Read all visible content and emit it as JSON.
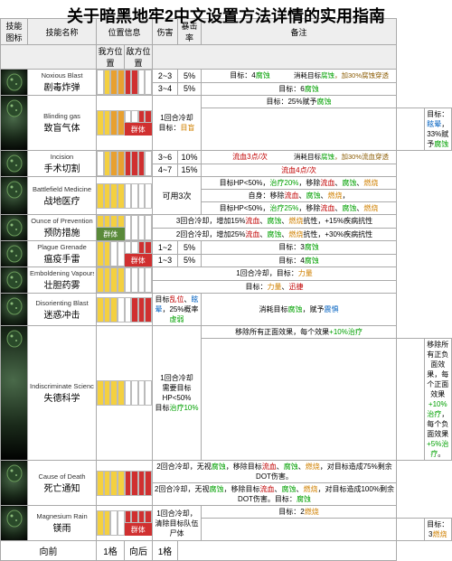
{
  "page_title": "关于暗黑地牢2中文设置方法详情的实用指南",
  "colors": {
    "pos_yellow": "#f4d040",
    "pos_orange": "#e8a030",
    "pos_red": "#d03030",
    "pos_green": "#5a8a3a",
    "pos_empty": "#ffffff",
    "border": "#aaaaaa",
    "text_red": "#c00000",
    "text_green": "#00a000",
    "text_orange": "#d08000",
    "text_blue": "#0060c0",
    "text_yellow": "#c0a000",
    "text_brown": "#8a5a00"
  },
  "headers": {
    "icon": "技能图标",
    "name": "技能名称",
    "pos": "位置信息",
    "pos_self": "我方位置",
    "pos_enemy": "敌方位置",
    "dmg": "伤害",
    "crit": "暴击率",
    "note": "备注"
  },
  "nav": {
    "prev": "向前",
    "prev_n": "1格",
    "next": "向后",
    "next_n": "1格"
  },
  "group_label": "群体",
  "skills": [
    {
      "en": "Noxious Blast",
      "cn": "剧毒炸弹",
      "pos_self": [
        "empty",
        "yellow",
        "orange",
        "orange"
      ],
      "pos_enemy": [
        "red",
        "red",
        "empty",
        "empty"
      ],
      "rows": [
        {
          "dmg": "2~3",
          "crit": "5%",
          "note_segs": [
            [
              "目标：4",
              ""
            ],
            [
              "腐蚀",
              "green"
            ]
          ],
          "right_segs": [
            [
              "消耗目标",
              ""
            ],
            [
              "腐蚀",
              "green"
            ],
            [
              "，加30%腐蚀穿透",
              "brown"
            ]
          ]
        },
        {
          "dmg": "3~4",
          "crit": "5%",
          "note_segs": [
            [
              "目标：6",
              ""
            ],
            [
              "腐蚀",
              "green"
            ]
          ]
        }
      ]
    },
    {
      "en": "Blinding gas",
      "cn": "致盲气体",
      "pos_self": [
        "yellow",
        "yellow",
        "orange",
        "orange"
      ],
      "pos_enemy": [
        "empty",
        "empty",
        "red",
        "red"
      ],
      "enemy_group": true,
      "rows": [
        {
          "dmg_span": "1回合冷却\n目标：",
          "dmg_extra": [
            [
              "目盲",
              "orange"
            ]
          ],
          "note_segs": [
            [
              "目标：25%赋予",
              ""
            ],
            [
              "腐蚀",
              "green"
            ]
          ]
        },
        {
          "note_segs": [
            [
              "目标：",
              ""
            ],
            [
              "眩晕",
              "blue"
            ],
            [
              "，33%赋予",
              ""
            ],
            [
              "腐蚀",
              "green"
            ]
          ]
        }
      ]
    },
    {
      "en": "Incision",
      "cn": "手术切割",
      "pos_self": [
        "empty",
        "yellow",
        "orange",
        "orange"
      ],
      "pos_enemy": [
        "red",
        "red",
        "red",
        "empty"
      ],
      "rows": [
        {
          "dmg": "3~6",
          "crit": "10%",
          "note_segs": [
            [
              "流血3点/次",
              "red"
            ]
          ],
          "right_segs": [
            [
              "消耗目标",
              ""
            ],
            [
              "腐蚀",
              "green"
            ],
            [
              "，加30%流血穿透",
              "brown"
            ]
          ]
        },
        {
          "dmg": "4~7",
          "crit": "15%",
          "note_segs": [
            [
              "流血4点/次",
              "red"
            ]
          ]
        }
      ]
    },
    {
      "en": "Battlefield Medicine",
      "cn": "战地医疗",
      "pos_self": [
        "yellow",
        "yellow",
        "yellow",
        "yellow"
      ],
      "pos_enemy": [
        "empty",
        "empty",
        "empty",
        "empty"
      ],
      "mid_text": "可用3次",
      "rows": [
        {
          "note_segs": [
            [
              "目标HP<50%，",
              ""
            ],
            [
              "治疗20%",
              "green"
            ],
            [
              "，移除",
              ""
            ],
            [
              "流血",
              "red"
            ],
            [
              "、",
              ""
            ],
            [
              "腐蚀",
              "green"
            ],
            [
              "、",
              ""
            ],
            [
              "燃烧",
              "orange"
            ]
          ]
        },
        {
          "note_segs": [
            [
              "自身：移除",
              ""
            ],
            [
              "流血",
              "red"
            ],
            [
              "、",
              ""
            ],
            [
              "腐蚀",
              "green"
            ],
            [
              "、",
              ""
            ],
            [
              "燃烧",
              "orange"
            ],
            [
              "，",
              ""
            ]
          ]
        },
        {
          "note_segs": [
            [
              "目标HP<50%，",
              ""
            ],
            [
              "治疗25%",
              "green"
            ],
            [
              "，移除",
              ""
            ],
            [
              "流血",
              "red"
            ],
            [
              "、",
              ""
            ],
            [
              "腐蚀",
              "green"
            ],
            [
              "、",
              ""
            ],
            [
              "燃烧",
              "orange"
            ]
          ]
        }
      ]
    },
    {
      "en": "Ounce of Prevention",
      "cn": "预防措施",
      "pos_self": [
        "yellow",
        "yellow",
        "yellow",
        "yellow"
      ],
      "self_group": true,
      "pos_enemy": [
        "empty",
        "empty",
        "empty",
        "empty"
      ],
      "rows": [
        {
          "full_segs": [
            [
              "3回合冷却，增加15%",
              ""
            ],
            [
              "流血",
              "red"
            ],
            [
              "、",
              ""
            ],
            [
              "腐蚀",
              "green"
            ],
            [
              "、",
              ""
            ],
            [
              "燃烧",
              "orange"
            ],
            [
              "抗性，+15%疾病抗性",
              ""
            ]
          ]
        },
        {
          "full_segs": [
            [
              "2回合冷却，增加25%",
              ""
            ],
            [
              "流血",
              "red"
            ],
            [
              "、",
              ""
            ],
            [
              "腐蚀",
              "green"
            ],
            [
              "、",
              ""
            ],
            [
              "燃烧",
              "orange"
            ],
            [
              "抗性，+30%疾病抗性",
              ""
            ]
          ]
        }
      ]
    },
    {
      "en": "Plague Grenade",
      "cn": "瘟疫手雷",
      "pos_self": [
        "yellow",
        "yellow",
        "empty",
        "empty"
      ],
      "pos_enemy": [
        "empty",
        "empty",
        "red",
        "red"
      ],
      "enemy_group": true,
      "rows": [
        {
          "dmg": "1~2",
          "crit": "5%",
          "note_segs": [
            [
              "目标：3",
              ""
            ],
            [
              "腐蚀",
              "green"
            ]
          ]
        },
        {
          "dmg": "1~3",
          "crit": "5%",
          "note_segs": [
            [
              "目标：4",
              ""
            ],
            [
              "腐蚀",
              "green"
            ]
          ]
        }
      ]
    },
    {
      "en": "Emboldening Vapours",
      "cn": "壮胆药雾",
      "pos_self": [
        "yellow",
        "yellow",
        "yellow",
        "yellow"
      ],
      "pos_enemy": [
        "empty",
        "empty",
        "empty",
        "empty"
      ],
      "rows": [
        {
          "full_segs": [
            [
              "1回合冷却，目标：",
              ""
            ],
            [
              "力量",
              "orange"
            ]
          ]
        },
        {
          "full_segs": [
            [
              "目标：",
              ""
            ],
            [
              "力量",
              "orange"
            ],
            [
              "、",
              ""
            ],
            [
              "迅捷",
              "red"
            ]
          ]
        }
      ]
    },
    {
      "en": "Disorienting Blast",
      "cn": "迷惑冲击",
      "pos_self": [
        "yellow",
        "yellow",
        "yellow",
        "empty"
      ],
      "pos_enemy": [
        "empty",
        "red",
        "red",
        "red"
      ],
      "rows": [
        {
          "mid_segs": [
            [
              "目标",
              ""
            ],
            [
              "乱位",
              "red"
            ],
            [
              "、",
              ""
            ],
            [
              "眩晕",
              "blue"
            ],
            [
              "，25%概率",
              ""
            ],
            [
              "虚弱",
              "green"
            ]
          ],
          "note_segs": [
            [
              "消耗目标",
              ""
            ],
            [
              "腐蚀",
              "green"
            ],
            [
              "，赋予",
              ""
            ],
            [
              "震惧",
              "blue"
            ]
          ]
        }
      ]
    },
    {
      "en": "Indiscriminate Science",
      "cn": "失德科学",
      "pos_self": [
        "yellow",
        "yellow",
        "yellow",
        "yellow"
      ],
      "pos_enemy": [
        "empty",
        "empty",
        "empty",
        "empty"
      ],
      "rows": [
        {
          "mid_segs": [
            [
              "1回合冷却\n需要目标HP<50%\n目标",
              ""
            ],
            [
              "治疗10%",
              "green"
            ]
          ],
          "note_segs": [
            [
              "移除所有正面效果，每个效果",
              ""
            ],
            [
              "+10%治疗",
              "green"
            ]
          ]
        },
        {
          "note_segs": [
            [
              "移除所有正负面效果，每个正面效果",
              ""
            ],
            [
              "+10%治疗",
              "green"
            ],
            [
              "，每个负面效果",
              ""
            ],
            [
              "+5%治疗",
              "green"
            ],
            [
              "。",
              ""
            ]
          ]
        }
      ]
    },
    {
      "en": "Cause of Death",
      "cn": "死亡通知",
      "pos_self": [
        "yellow",
        "yellow",
        "yellow",
        "yellow"
      ],
      "pos_enemy": [
        "red",
        "red",
        "red",
        "red"
      ],
      "rows": [
        {
          "full_segs": [
            [
              "2回合冷却，无视",
              ""
            ],
            [
              "腐蚀",
              "green"
            ],
            [
              "，移除目标",
              ""
            ],
            [
              "流血",
              "red"
            ],
            [
              "、",
              ""
            ],
            [
              "腐蚀",
              "green"
            ],
            [
              "、",
              ""
            ],
            [
              "燃烧",
              "orange"
            ],
            [
              "，对目标造成75%剩余DOT伤害。",
              ""
            ]
          ]
        },
        {
          "full_segs": [
            [
              "2回合冷却，无视",
              ""
            ],
            [
              "腐蚀",
              "green"
            ],
            [
              "，移除目标",
              ""
            ],
            [
              "流血",
              "red"
            ],
            [
              "、",
              ""
            ],
            [
              "腐蚀",
              "green"
            ],
            [
              "、",
              ""
            ],
            [
              "燃烧",
              "orange"
            ],
            [
              "，对目标造成100%剩余DOT伤害。目标：",
              ""
            ],
            [
              "腐蚀",
              "green"
            ]
          ]
        }
      ]
    },
    {
      "en": "Magnesium Rain",
      "cn": "镁雨",
      "pos_self": [
        "yellow",
        "yellow",
        "empty",
        "empty"
      ],
      "pos_enemy": [
        "red",
        "red",
        "red",
        "red"
      ],
      "enemy_group": true,
      "rows": [
        {
          "mid_segs": [
            [
              "1回合冷却，清除目标队伍尸体",
              ""
            ]
          ],
          "note_segs": [
            [
              "目标：2",
              ""
            ],
            [
              "燃烧",
              "orange"
            ]
          ]
        },
        {
          "note_segs": [
            [
              "目标：3",
              ""
            ],
            [
              "燃烧",
              "orange"
            ]
          ]
        }
      ]
    }
  ]
}
